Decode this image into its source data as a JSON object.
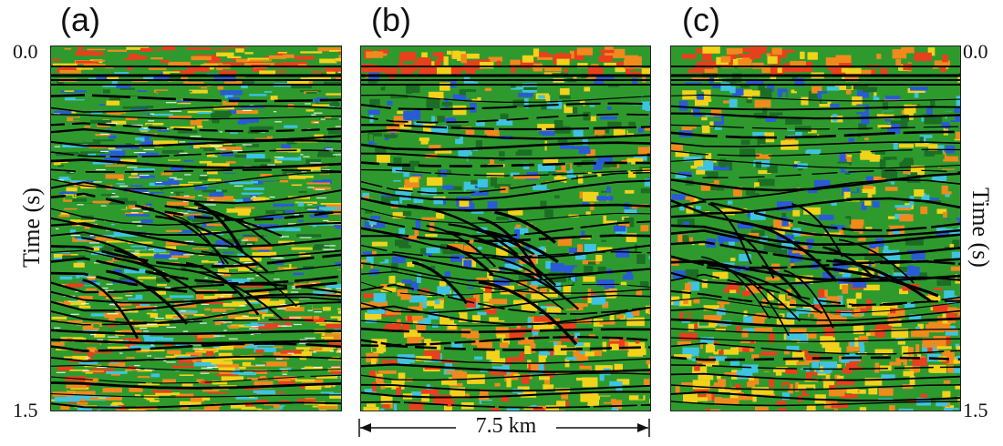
{
  "panels": [
    {
      "label": "(a)"
    },
    {
      "label": "(b)"
    },
    {
      "label": "(c)"
    }
  ],
  "left_axis": {
    "top": "0.0",
    "bottom": "1.5",
    "title": "Time (s)"
  },
  "right_axis": {
    "top": "0.0",
    "bottom": "1.5",
    "title": "Time (s)"
  },
  "scale_bar": {
    "label": "7.5 km"
  },
  "colors": {
    "red": "#e8401c",
    "orange": "#f08a1c",
    "yellow": "#f2d21a",
    "green": "#2e9a2e",
    "dark_green": "#1c6e24",
    "blue": "#2a5bd6",
    "cyan": "#3ec4e0",
    "white": "#ffffff",
    "black": "#000000"
  }
}
